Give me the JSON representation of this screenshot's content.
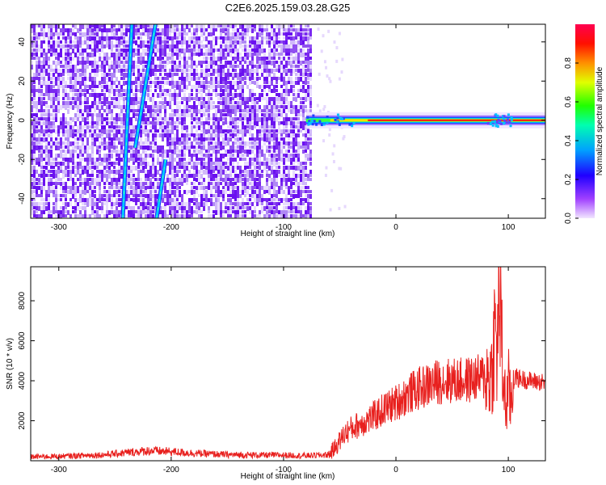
{
  "title": "C2E6.2025.159.03.28.G25",
  "colors": {
    "snr_line": "#e8201e",
    "spectro_noise_dark": "#6a00e8",
    "spectro_noise_light": "#c8a8f8",
    "colorbar_stops": [
      "#f0e0ff",
      "#8000ff",
      "#0000ff",
      "#00c8ff",
      "#00ff40",
      "#ffff00",
      "#ff8000",
      "#ff0000",
      "#ff0060"
    ]
  },
  "chart_data": [
    {
      "type": "heatmap",
      "xlabel": "Height of straight line (km)",
      "ylabel": "Frequency (Hz)",
      "xlim": [
        -325,
        133
      ],
      "ylim": [
        -50,
        49
      ],
      "xticks": [
        -300,
        -200,
        -100,
        0,
        100
      ],
      "xtick_labels": [
        "-300",
        "-200",
        "-100",
        "0",
        "100"
      ],
      "yticks": [
        -40,
        -20,
        0,
        20,
        40
      ],
      "ytick_labels": [
        "-40",
        "-20",
        "0",
        "20",
        "40"
      ],
      "noise_region_end_x": -75,
      "signal": {
        "frequency": 0,
        "x_start": -80,
        "x_end": 133
      },
      "diagonal_streaks": [
        {
          "x": [
            -243,
            -235
          ],
          "y": [
            -50,
            49
          ]
        },
        {
          "x": [
            -232,
            -214
          ],
          "y": [
            -14,
            49
          ]
        },
        {
          "x": [
            -213,
            -205
          ],
          "y": [
            -50,
            -20
          ]
        }
      ],
      "colorbar": {
        "label": "Normalized spectral amplitude",
        "range": [
          0,
          1
        ],
        "ticks": [
          0.0,
          0.2,
          0.4,
          0.6,
          0.8
        ],
        "tick_labels": [
          "0.0",
          "0.2",
          "0.4",
          "0.6",
          "0.8"
        ]
      }
    },
    {
      "type": "line",
      "xlabel": "Height of straight line (km)",
      "ylabel": "SNR (10 * v/v)",
      "xlim": [
        -325,
        133
      ],
      "ylim": [
        0,
        9700
      ],
      "xticks": [
        -300,
        -200,
        -100,
        0,
        100
      ],
      "xtick_labels": [
        "-300",
        "-200",
        "-100",
        "0",
        "100"
      ],
      "yticks": [
        2000,
        4000,
        6000,
        8000
      ],
      "ytick_labels": [
        "2000",
        "4000",
        "6000",
        "8000"
      ],
      "series": [
        {
          "x": [
            -325,
            -300,
            -260,
            -240,
            -220,
            -200,
            -180,
            -150,
            -120,
            -100,
            -80,
            -60,
            -55,
            -50,
            -45,
            -40,
            -30,
            -20,
            -10,
            0,
            10,
            20,
            30,
            40,
            50,
            60,
            70,
            80,
            85,
            88,
            90,
            92,
            95,
            98,
            100,
            102,
            105,
            110,
            120,
            133
          ],
          "y": [
            200,
            220,
            300,
            400,
            500,
            450,
            380,
            300,
            280,
            280,
            250,
            300,
            600,
            1000,
            1400,
            1600,
            1900,
            2200,
            2600,
            2900,
            3300,
            3600,
            3800,
            4000,
            4000,
            4000,
            4100,
            4200,
            4300,
            6500,
            5200,
            8800,
            4500,
            2500,
            3800,
            2800,
            4200,
            4100,
            4000,
            3900
          ]
        }
      ]
    }
  ]
}
